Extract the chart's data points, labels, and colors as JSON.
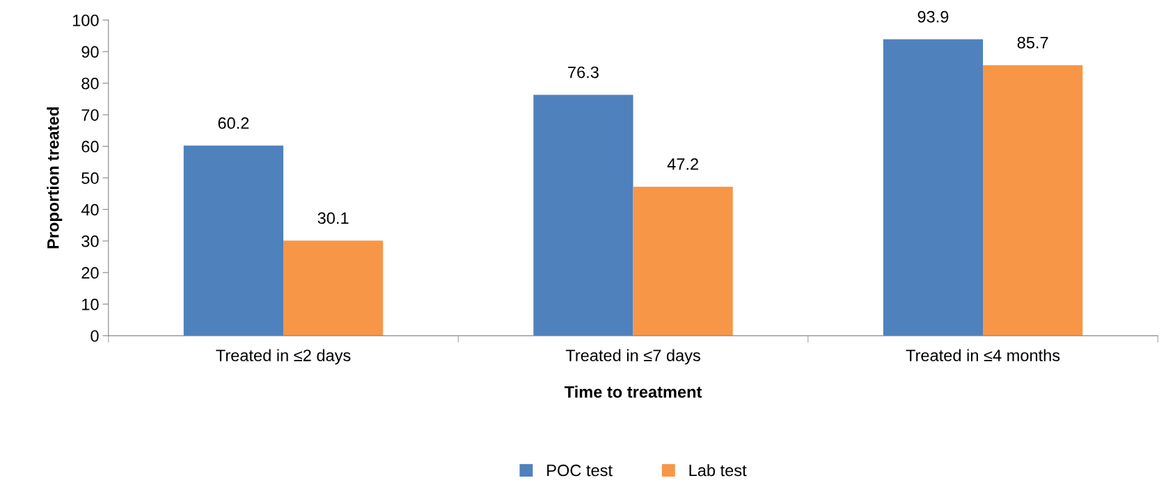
{
  "chart_data": {
    "type": "bar",
    "categories": [
      "Treated in ≤2 days",
      "Treated in ≤7 days",
      "Treated in ≤4 months"
    ],
    "series": [
      {
        "name": "POC test",
        "color": "#4f81bd",
        "values": [
          60.2,
          76.3,
          93.9
        ]
      },
      {
        "name": "Lab test",
        "color": "#f79646",
        "values": [
          30.1,
          47.2,
          85.7
        ]
      }
    ],
    "xlabel": "Time to treatment",
    "ylabel": "Proportion treated",
    "ylim": [
      0,
      100
    ],
    "yticks": [
      0,
      10,
      20,
      30,
      40,
      50,
      60,
      70,
      80,
      90,
      100
    ],
    "data_labels": true,
    "grid": false,
    "legend": "bottom"
  }
}
